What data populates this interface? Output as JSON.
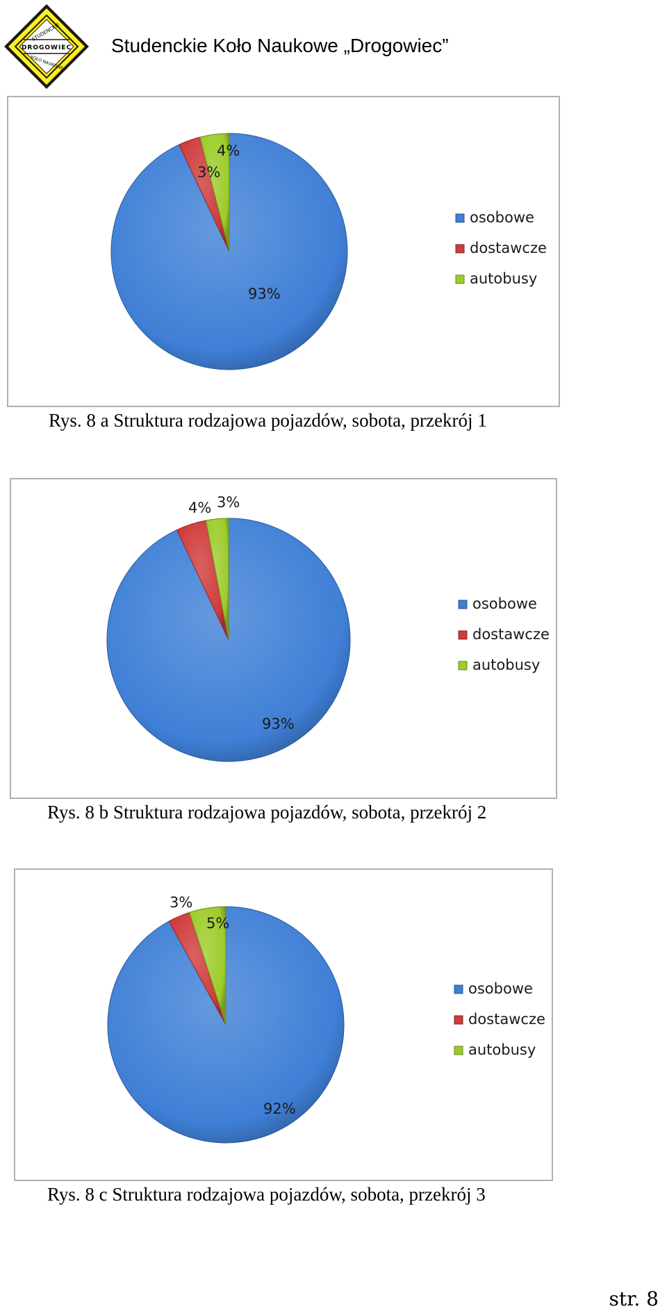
{
  "header": {
    "title": "Studenckie Koło Naukowe „Drogowiec”",
    "logo": {
      "top_text": "STUDENCKIE",
      "middle_text": "DROGOWIEC",
      "bottom_text": "KOŁO NAUKOWE",
      "colors": {
        "fill": "#ffef1f",
        "border": "#1a1a1a"
      }
    }
  },
  "colors": {
    "osobowe": "#3f7fd6",
    "dostawcze": "#cf3a3a",
    "autobusy": "#9ccc2a"
  },
  "chart_data": [
    {
      "type": "pie",
      "title": "",
      "categories": [
        "osobowe",
        "dostawcze",
        "autobusy"
      ],
      "values": [
        93,
        3,
        4
      ],
      "labels": [
        "93%",
        "3%",
        "4%"
      ],
      "legend_position": "right",
      "caption": "Rys. 8 a Struktura rodzajowa pojazdów, sobota, przekrój 1"
    },
    {
      "type": "pie",
      "title": "",
      "categories": [
        "osobowe",
        "dostawcze",
        "autobusy"
      ],
      "values": [
        93,
        4,
        3
      ],
      "labels": [
        "93%",
        "4%",
        "3%"
      ],
      "legend_position": "right",
      "caption": "Rys. 8 b Struktura rodzajowa pojazdów, sobota, przekrój 2"
    },
    {
      "type": "pie",
      "title": "",
      "categories": [
        "osobowe",
        "dostawcze",
        "autobusy"
      ],
      "values": [
        92,
        3,
        5
      ],
      "labels": [
        "92%",
        "3%",
        "5%"
      ],
      "legend_position": "right",
      "caption": "Rys. 8 c Struktura rodzajowa pojazdów, sobota, przekrój 3"
    }
  ],
  "footer": {
    "page_number": "str. 8"
  }
}
